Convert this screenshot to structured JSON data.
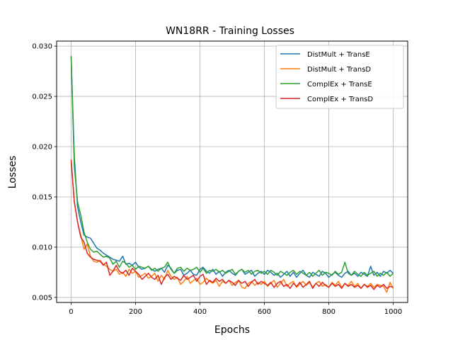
{
  "chart_data": {
    "type": "line",
    "title": "WN18RR - Training Losses",
    "xlabel": "Epochs",
    "ylabel": "Losses",
    "xlim": [
      -45,
      1045
    ],
    "ylim": [
      0.0045,
      0.0305
    ],
    "xticks": [
      0,
      200,
      400,
      600,
      800,
      1000
    ],
    "yticks": [
      0.005,
      0.01,
      0.015,
      0.02,
      0.025,
      0.03
    ],
    "xtick_labels": [
      "0",
      "200",
      "400",
      "600",
      "800",
      "1000"
    ],
    "ytick_labels": [
      "0.005",
      "0.010",
      "0.015",
      "0.020",
      "0.025",
      "0.030"
    ],
    "grid": true,
    "legend_position": "top-right",
    "x": [
      0,
      10,
      20,
      30,
      40,
      50,
      60,
      70,
      80,
      90,
      100,
      110,
      120,
      130,
      140,
      150,
      160,
      170,
      180,
      190,
      200,
      210,
      220,
      230,
      240,
      250,
      260,
      270,
      280,
      290,
      300,
      310,
      320,
      330,
      340,
      350,
      360,
      370,
      380,
      390,
      400,
      410,
      420,
      430,
      440,
      450,
      460,
      470,
      480,
      490,
      500,
      510,
      520,
      530,
      540,
      550,
      560,
      570,
      580,
      590,
      600,
      610,
      620,
      630,
      640,
      650,
      660,
      670,
      680,
      690,
      700,
      710,
      720,
      730,
      740,
      750,
      760,
      770,
      780,
      790,
      800,
      810,
      820,
      830,
      840,
      850,
      860,
      870,
      880,
      890,
      900,
      910,
      920,
      930,
      940,
      950,
      960,
      970,
      980,
      990,
      1000
    ],
    "series": [
      {
        "name": "DistMult + TransE",
        "color": "#1f77b4",
        "values": [
          0.029,
          0.019,
          0.014,
          0.0125,
          0.0112,
          0.011,
          0.0109,
          0.0104,
          0.0099,
          0.0097,
          0.0094,
          0.0092,
          0.009,
          0.0088,
          0.0087,
          0.0086,
          0.0091,
          0.0083,
          0.0084,
          0.0082,
          0.0085,
          0.008,
          0.0078,
          0.0079,
          0.0081,
          0.0078,
          0.0076,
          0.0078,
          0.0079,
          0.0075,
          0.0082,
          0.0079,
          0.0074,
          0.0077,
          0.0078,
          0.0072,
          0.0074,
          0.0077,
          0.0073,
          0.0072,
          0.0078,
          0.008,
          0.0076,
          0.0074,
          0.0078,
          0.0073,
          0.0076,
          0.0071,
          0.0075,
          0.0077,
          0.0074,
          0.0072,
          0.0076,
          0.0078,
          0.0073,
          0.0075,
          0.0077,
          0.0071,
          0.0074,
          0.0076,
          0.0073,
          0.0077,
          0.0075,
          0.0072,
          0.0074,
          0.007,
          0.0073,
          0.0076,
          0.0071,
          0.0075,
          0.007,
          0.0074,
          0.0077,
          0.0072,
          0.007,
          0.0075,
          0.0073,
          0.0071,
          0.0076,
          0.0074,
          0.007,
          0.0073,
          0.0075,
          0.0072,
          0.007,
          0.0074,
          0.0076,
          0.0072,
          0.0074,
          0.0071,
          0.0075,
          0.0073,
          0.0071,
          0.0081,
          0.0072,
          0.0075,
          0.0071,
          0.0076,
          0.0074,
          0.0077,
          0.0074
        ]
      },
      {
        "name": "DistMult + TransD",
        "color": "#ff7f0e",
        "values": [
          0.0185,
          0.0145,
          0.0125,
          0.0112,
          0.0098,
          0.0103,
          0.0091,
          0.0086,
          0.0085,
          0.0087,
          0.0083,
          0.0081,
          0.0078,
          0.0076,
          0.0078,
          0.0073,
          0.0075,
          0.0071,
          0.0078,
          0.0074,
          0.0076,
          0.007,
          0.0072,
          0.0074,
          0.0069,
          0.0071,
          0.0074,
          0.0066,
          0.0072,
          0.0068,
          0.0077,
          0.0071,
          0.0068,
          0.007,
          0.0063,
          0.0066,
          0.0071,
          0.0064,
          0.0067,
          0.0069,
          0.0063,
          0.0065,
          0.0069,
          0.0066,
          0.0064,
          0.0067,
          0.0061,
          0.0066,
          0.0064,
          0.0067,
          0.0062,
          0.0065,
          0.0067,
          0.006,
          0.0059,
          0.0064,
          0.0066,
          0.0062,
          0.0065,
          0.0063,
          0.0066,
          0.0061,
          0.0064,
          0.0067,
          0.006,
          0.0064,
          0.0068,
          0.0061,
          0.0064,
          0.0066,
          0.006,
          0.0063,
          0.0066,
          0.0062,
          0.0065,
          0.006,
          0.0064,
          0.0066,
          0.0061,
          0.0063,
          0.006,
          0.0065,
          0.0062,
          0.0066,
          0.006,
          0.0064,
          0.0062,
          0.0066,
          0.0061,
          0.0064,
          0.0059,
          0.0063,
          0.0061,
          0.0064,
          0.006,
          0.0063,
          0.0062,
          0.0061,
          0.0055,
          0.0065,
          0.0059
        ]
      },
      {
        "name": "ComplEx + TransE",
        "color": "#2ca02c",
        "values": [
          0.029,
          0.018,
          0.0145,
          0.0132,
          0.0115,
          0.0105,
          0.0098,
          0.0095,
          0.0096,
          0.0093,
          0.009,
          0.0091,
          0.0089,
          0.0083,
          0.0086,
          0.008,
          0.0086,
          0.0084,
          0.008,
          0.0082,
          0.0078,
          0.0081,
          0.008,
          0.0079,
          0.0081,
          0.0077,
          0.0079,
          0.0076,
          0.0079,
          0.008,
          0.0085,
          0.0078,
          0.0074,
          0.0079,
          0.008,
          0.0076,
          0.0079,
          0.0077,
          0.0078,
          0.008,
          0.0075,
          0.0079,
          0.0074,
          0.0077,
          0.0076,
          0.0078,
          0.0075,
          0.0077,
          0.0074,
          0.0076,
          0.0078,
          0.0073,
          0.0076,
          0.0078,
          0.0075,
          0.0077,
          0.0073,
          0.0076,
          0.0077,
          0.0074,
          0.0076,
          0.0073,
          0.0077,
          0.0075,
          0.0072,
          0.0076,
          0.0074,
          0.0072,
          0.0075,
          0.0077,
          0.0073,
          0.0076,
          0.0074,
          0.0072,
          0.0075,
          0.0071,
          0.0074,
          0.0077,
          0.0072,
          0.0075,
          0.0074,
          0.0072,
          0.0076,
          0.0073,
          0.0075,
          0.0085,
          0.0074,
          0.0072,
          0.0076,
          0.0073,
          0.0071,
          0.0075,
          0.0072,
          0.0074,
          0.0076,
          0.0071,
          0.0074,
          0.0072,
          0.0075,
          0.0071,
          0.0074
        ]
      },
      {
        "name": "ComplEx + TransD",
        "color": "#d62728",
        "values": [
          0.0187,
          0.0145,
          0.0125,
          0.011,
          0.0105,
          0.0094,
          0.009,
          0.0088,
          0.0087,
          0.0086,
          0.0082,
          0.0085,
          0.0072,
          0.0076,
          0.0082,
          0.0076,
          0.0074,
          0.0077,
          0.0072,
          0.0079,
          0.0076,
          0.0073,
          0.0068,
          0.0071,
          0.0074,
          0.007,
          0.0068,
          0.0072,
          0.0063,
          0.007,
          0.0073,
          0.0068,
          0.0071,
          0.0069,
          0.0067,
          0.0072,
          0.0068,
          0.007,
          0.0072,
          0.0066,
          0.0071,
          0.0073,
          0.0063,
          0.0067,
          0.0065,
          0.0069,
          0.0066,
          0.0068,
          0.0064,
          0.0067,
          0.0065,
          0.0062,
          0.0067,
          0.0064,
          0.0066,
          0.0061,
          0.0065,
          0.0068,
          0.0063,
          0.0066,
          0.0064,
          0.0062,
          0.0065,
          0.006,
          0.0064,
          0.0066,
          0.0061,
          0.0063,
          0.0059,
          0.0064,
          0.0061,
          0.0065,
          0.006,
          0.0063,
          0.0066,
          0.0059,
          0.0064,
          0.0061,
          0.0065,
          0.0062,
          0.006,
          0.0064,
          0.0061,
          0.0063,
          0.0059,
          0.0064,
          0.0061,
          0.0063,
          0.006,
          0.0062,
          0.0059,
          0.0063,
          0.006,
          0.0062,
          0.0058,
          0.0062,
          0.006,
          0.0063,
          0.0059,
          0.0061,
          0.006
        ]
      }
    ]
  }
}
